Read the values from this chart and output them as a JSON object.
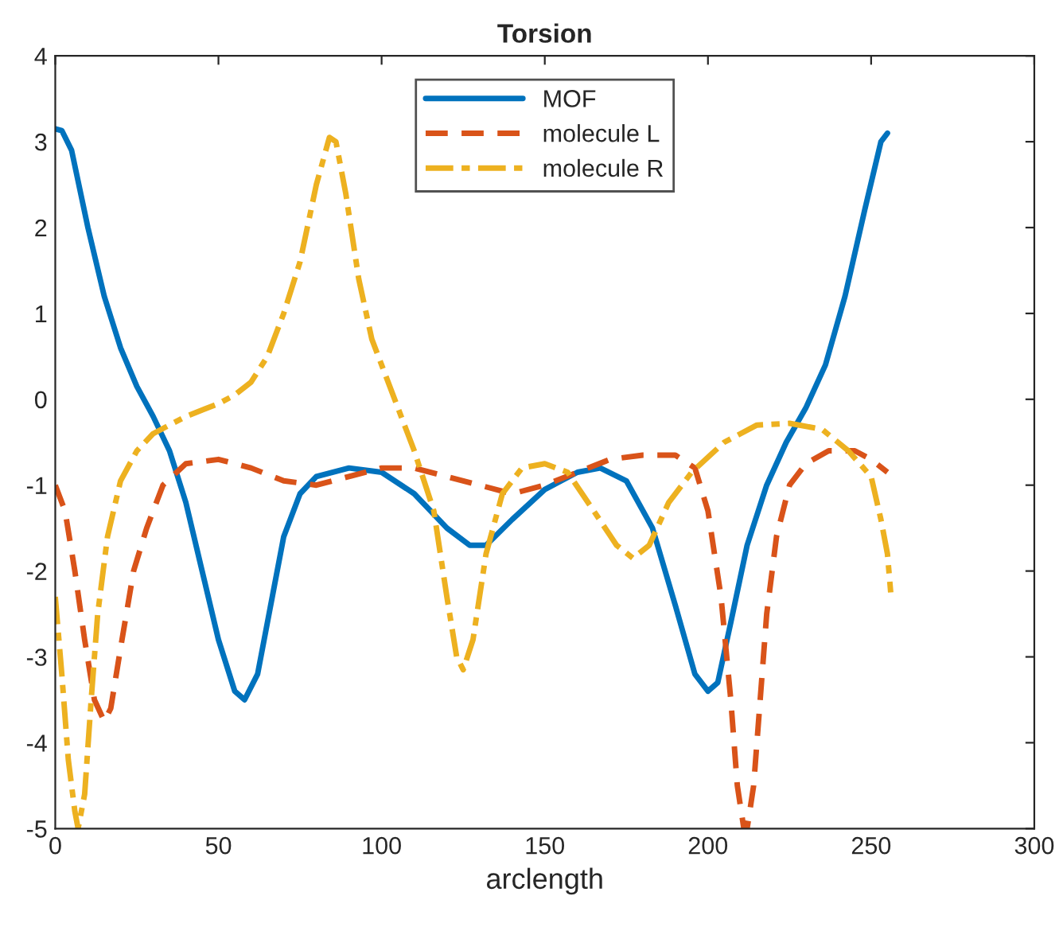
{
  "chart_data": {
    "type": "line",
    "title": "Torsion",
    "xlabel": "arclength",
    "xlim": [
      0,
      300
    ],
    "xticks": [
      0,
      50,
      100,
      150,
      200,
      250,
      300
    ],
    "ylim": [
      -5,
      4
    ],
    "yticks": [
      -5,
      -4,
      -3,
      -2,
      -1,
      0,
      1,
      2,
      3,
      4
    ],
    "grid": false,
    "legend": "top",
    "marker": "none",
    "series": [
      {
        "name": "MOF",
        "color": "#0072bd",
        "line_style": "solid",
        "x": [
          0,
          2,
          5,
          10,
          15,
          20,
          25,
          30,
          35,
          40,
          45,
          50,
          55,
          58,
          62,
          66,
          70,
          75,
          80,
          90,
          100,
          110,
          120,
          127,
          132,
          140,
          150,
          160,
          167,
          175,
          183,
          190,
          196,
          200,
          203,
          207,
          212,
          218,
          224,
          230,
          236,
          242,
          248,
          253,
          255
        ],
        "values": [
          3.15,
          3.13,
          2.9,
          2.0,
          1.2,
          0.6,
          0.15,
          -0.2,
          -0.6,
          -1.2,
          -2.0,
          -2.8,
          -3.4,
          -3.5,
          -3.2,
          -2.4,
          -1.6,
          -1.1,
          -0.9,
          -0.8,
          -0.85,
          -1.1,
          -1.5,
          -1.7,
          -1.7,
          -1.4,
          -1.05,
          -0.85,
          -0.8,
          -0.95,
          -1.5,
          -2.4,
          -3.2,
          -3.4,
          -3.3,
          -2.6,
          -1.7,
          -1.0,
          -0.5,
          -0.1,
          0.4,
          1.2,
          2.2,
          3.0,
          3.1
        ]
      },
      {
        "name": "molecule L",
        "color": "#d95319",
        "line_style": "dashed",
        "x": [
          0,
          3,
          6,
          9,
          12,
          15,
          17,
          20,
          24,
          28,
          33,
          40,
          50,
          60,
          70,
          80,
          90,
          100,
          110,
          120,
          130,
          140,
          150,
          160,
          170,
          180,
          190,
          196,
          200,
          204,
          207,
          209,
          211,
          212,
          214,
          216,
          218,
          221,
          225,
          230,
          237,
          245,
          250,
          255
        ],
        "values": [
          -1.0,
          -1.3,
          -2.0,
          -2.8,
          -3.5,
          -3.75,
          -3.6,
          -2.9,
          -2.0,
          -1.5,
          -1.0,
          -0.75,
          -0.7,
          -0.8,
          -0.95,
          -1.0,
          -0.9,
          -0.8,
          -0.8,
          -0.9,
          -1.0,
          -1.1,
          -1.0,
          -0.85,
          -0.7,
          -0.65,
          -0.65,
          -0.8,
          -1.3,
          -2.3,
          -3.5,
          -4.5,
          -5.0,
          -5.0,
          -4.5,
          -3.5,
          -2.5,
          -1.6,
          -1.0,
          -0.75,
          -0.6,
          -0.6,
          -0.7,
          -0.85
        ]
      },
      {
        "name": "molecule R",
        "color": "#edb120",
        "line_style": "dashdot",
        "x": [
          0,
          2,
          4,
          6,
          7,
          9,
          11,
          13,
          16,
          20,
          25,
          30,
          40,
          50,
          55,
          60,
          65,
          70,
          75,
          80,
          84,
          86,
          89,
          93,
          97,
          103,
          110,
          116,
          120,
          123,
          125,
          128,
          132,
          137,
          143,
          150,
          157,
          165,
          172,
          177,
          182,
          188,
          195,
          205,
          215,
          225,
          235,
          243,
          250,
          253,
          255,
          256
        ],
        "values": [
          -2.3,
          -3.2,
          -4.2,
          -4.8,
          -5.0,
          -4.6,
          -3.5,
          -2.5,
          -1.6,
          -0.95,
          -0.6,
          -0.4,
          -0.2,
          -0.05,
          0.05,
          0.2,
          0.5,
          1.0,
          1.6,
          2.5,
          3.05,
          3.0,
          2.4,
          1.4,
          0.7,
          0.1,
          -0.6,
          -1.3,
          -2.3,
          -3.0,
          -3.15,
          -2.8,
          -1.8,
          -1.1,
          -0.8,
          -0.75,
          -0.85,
          -1.3,
          -1.7,
          -1.85,
          -1.7,
          -1.2,
          -0.85,
          -0.5,
          -0.3,
          -0.28,
          -0.35,
          -0.6,
          -0.9,
          -1.4,
          -1.8,
          -2.25
        ]
      }
    ]
  }
}
